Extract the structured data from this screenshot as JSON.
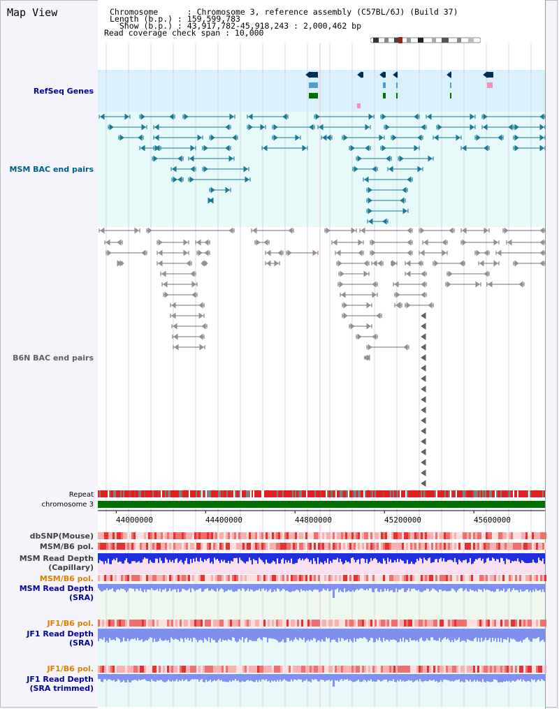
{
  "page": {
    "title": "Map View"
  },
  "header": {
    "chromosome_line": "Chromosome      : Chromosome 3, reference assembly (C57BL/6J) (Build 37)",
    "length_line": "Length (b.p.) : 159,599,783",
    "show_line": "  Show (b.p.) : 43,917,782-45,918,243 : 2,000,462 bp",
    "coverage_line": "Read coverage check span : 10,000"
  },
  "tracks": {
    "refseq": "RefSeq Genes",
    "msm_bac": "MSM BAC end pairs",
    "b6n_bac": "B6N BAC end pairs",
    "repeat": "Repeat",
    "chromosome": "chromosome 3",
    "dbsnp": "dbSNP(Mouse)",
    "msm_b6_pol_1": "MSM/B6 pol.",
    "msm_read_depth_cap_1": "MSM Read Depth",
    "msm_read_depth_cap_2": "(Capillary)",
    "msm_b6_pol_2": "MSM/B6 pol.",
    "msm_read_depth_sra_1": "MSM Read Depth",
    "msm_read_depth_sra_2": "(SRA)",
    "jf1_b6_pol_1": "JF1/B6 pol.",
    "jf1_read_depth_sra_1": "JF1 Read Depth",
    "jf1_read_depth_sra_2": "(SRA)",
    "jf1_b6_pol_2": "JF1/B6 pol.",
    "jf1_read_depth_trim_1": "JF1 Read Depth",
    "jf1_read_depth_trim_2": "(SRA trimmed)"
  },
  "axis": {
    "ticks": [
      "44000000",
      "44400000",
      "44800000",
      "45200000",
      "45600000"
    ],
    "tick_values": [
      44000000,
      44400000,
      44800000,
      45200000,
      45600000
    ],
    "range": [
      43917782,
      45918243
    ]
  },
  "colors": {
    "refseq_bg": "#daf0fa",
    "msm_bg": "#e6fafa",
    "gene_dark": "#00305a",
    "gene_light": "#4aa0c8",
    "gene_green": "#007000",
    "msm_bac": "#1a7890",
    "b6n_bac": "#707070",
    "chromosome": "#007000",
    "depth_blue": "#2030e0",
    "depth_sra": "#8090f0",
    "pol_red": "#f05050",
    "label_blue": "#0000a0",
    "label_orange": "#e08000",
    "label_teal": "#006080"
  }
}
